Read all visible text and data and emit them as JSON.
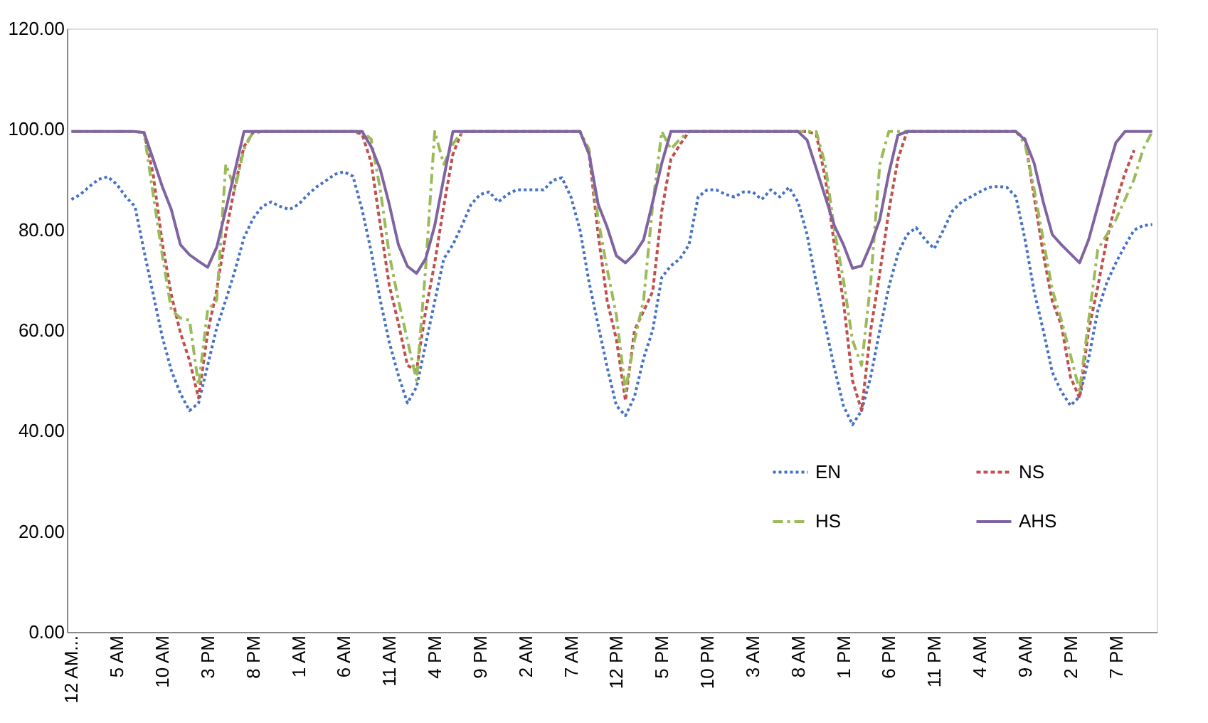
{
  "chart_data": {
    "type": "line",
    "categories": [
      "12 AM...",
      null,
      null,
      null,
      null,
      "5 AM",
      null,
      null,
      null,
      null,
      "10 AM",
      null,
      null,
      null,
      null,
      "3 PM",
      null,
      null,
      null,
      null,
      "8 PM",
      null,
      null,
      null,
      null,
      "1 AM",
      null,
      null,
      null,
      null,
      "6 AM",
      null,
      null,
      null,
      null,
      "11 AM",
      null,
      null,
      null,
      null,
      "4 PM",
      null,
      null,
      null,
      null,
      "9 PM",
      null,
      null,
      null,
      null,
      "2 AM",
      null,
      null,
      null,
      null,
      "7 AM",
      null,
      null,
      null,
      null,
      "12 PM",
      null,
      null,
      null,
      null,
      "5 PM",
      null,
      null,
      null,
      null,
      "10 PM",
      null,
      null,
      null,
      null,
      "3 AM",
      null,
      null,
      null,
      null,
      "8 AM",
      null,
      null,
      null,
      null,
      "1 PM",
      null,
      null,
      null,
      null,
      "6 PM",
      null,
      null,
      null,
      null,
      "11 PM",
      null,
      null,
      null,
      null,
      "4 AM",
      null,
      null,
      null,
      null,
      "9 AM",
      null,
      null,
      null,
      null,
      "2 PM",
      null,
      null,
      null,
      null,
      "7 PM",
      null,
      null,
      null,
      null
    ],
    "series": [
      {
        "name": "EN",
        "color": "#4472c4",
        "line_style": "dotted",
        "values": [
          86,
          87,
          88.6,
          90,
          90.5,
          89,
          86.5,
          84.6,
          75.7,
          67.2,
          58.7,
          52,
          47.4,
          44,
          45.5,
          53,
          60.5,
          66,
          71.8,
          78.4,
          82.2,
          84.6,
          85.5,
          84.6,
          84,
          85,
          86.9,
          88.5,
          89.7,
          91,
          91.5,
          90.6,
          84,
          75.7,
          66,
          57.6,
          51,
          45.5,
          48.7,
          57.2,
          65.7,
          74.2,
          77,
          80.8,
          85,
          87,
          87.5,
          85.5,
          87,
          87.9,
          87.9,
          87.9,
          87.9,
          89.8,
          90.3,
          86.5,
          79.9,
          69.5,
          61,
          52.5,
          45,
          43,
          46.8,
          54.4,
          60,
          70.5,
          72.8,
          74.2,
          77,
          86.5,
          87.9,
          87.9,
          87,
          86.5,
          87.5,
          87.5,
          86,
          87.9,
          86.5,
          88.4,
          85.5,
          79,
          69.5,
          61,
          52.5,
          45,
          41.2,
          44,
          50.7,
          60,
          68.6,
          75.2,
          79,
          80.4,
          78,
          76.2,
          79.9,
          83.7,
          85.5,
          86.5,
          87.5,
          88.4,
          88.6,
          88.4,
          86.5,
          78,
          67.7,
          60,
          51.6,
          47.8,
          45,
          46.8,
          54.4,
          63.8,
          69.5,
          73.4,
          76.8,
          79.9,
          80.8,
          81
        ]
      },
      {
        "name": "NS",
        "color": "#c0504d",
        "line_style": "dashed",
        "values": [
          null,
          null,
          null,
          null,
          null,
          null,
          null,
          null,
          99.3,
          91,
          77.4,
          67,
          59.5,
          54,
          46.5,
          59.5,
          68,
          79.3,
          88.6,
          96.5,
          99.3,
          99.5,
          99.5,
          99.5,
          99.5,
          99.5,
          99.5,
          99.5,
          99.5,
          99.5,
          99.5,
          99.5,
          99,
          93.4,
          81,
          68.9,
          61.4,
          53,
          52,
          63.8,
          73.4,
          84.7,
          95,
          99.5,
          99.5,
          99.5,
          99.5,
          99.5,
          99.5,
          99.5,
          99.5,
          99.5,
          99.5,
          99.5,
          99.5,
          99.5,
          99.5,
          95,
          79,
          65.7,
          58.2,
          46,
          60,
          63.8,
          67.7,
          83.7,
          94,
          96.9,
          99.5,
          99.5,
          99.5,
          99.5,
          99.5,
          99.5,
          99.5,
          99.5,
          99.5,
          99.5,
          99.5,
          99.5,
          99.5,
          99.5,
          99,
          90.3,
          77,
          65.7,
          50,
          44,
          60,
          71.3,
          83.7,
          94,
          99.5,
          99.5,
          99.5,
          99.5,
          99.5,
          99.5,
          99.5,
          99.5,
          99.5,
          99.5,
          99.5,
          99.5,
          99.5,
          98,
          86.5,
          75.2,
          65.7,
          61,
          50.7,
          46.5,
          60,
          68.6,
          78,
          85.5,
          91.2,
          95.8,
          null,
          null
        ]
      },
      {
        "name": "HS",
        "color": "#9bbb59",
        "line_style": "dashdot",
        "values": [
          99.5,
          99.5,
          99.5,
          99.5,
          99.5,
          99.5,
          99.5,
          99.5,
          99.3,
          87,
          75,
          64,
          62.4,
          62,
          49,
          64,
          66,
          93,
          88,
          96,
          99.5,
          99.5,
          99.5,
          99.5,
          99.5,
          99.5,
          99.5,
          99.5,
          99.5,
          99.5,
          99.5,
          99.5,
          99.5,
          98,
          88,
          75,
          66,
          58,
          50,
          72.3,
          99.5,
          93,
          97,
          99.5,
          99.5,
          99.5,
          99.5,
          99.5,
          99.5,
          99.5,
          99.5,
          99.5,
          99.5,
          99.5,
          99.5,
          99.5,
          99.5,
          96,
          82,
          72,
          63,
          48,
          58,
          66,
          85,
          99.5,
          96,
          98,
          99.5,
          99.5,
          99.5,
          99.5,
          99.5,
          99.5,
          99.5,
          99.5,
          99.5,
          99.5,
          99.5,
          99.5,
          99.5,
          99.5,
          99.5,
          93,
          80,
          70,
          58,
          53,
          69.5,
          93,
          99.5,
          99.5,
          99.5,
          99.5,
          99.5,
          99.5,
          99.5,
          99.5,
          99.5,
          99.5,
          99.5,
          99.5,
          99.5,
          99.5,
          99.5,
          97,
          88,
          78,
          68,
          62,
          55,
          48,
          62,
          76,
          79,
          82,
          86,
          90,
          96,
          99.5
        ]
      },
      {
        "name": "AHS",
        "color": "#8064a2",
        "line_style": "solid",
        "values": [
          99.5,
          99.5,
          99.5,
          99.5,
          99.5,
          99.5,
          99.5,
          99.5,
          99.3,
          94,
          88.6,
          84,
          77,
          75,
          73.7,
          72.5,
          76.5,
          84,
          91.7,
          99.5,
          99.5,
          99.5,
          99.5,
          99.5,
          99.5,
          99.5,
          99.5,
          99.5,
          99.5,
          99.5,
          99.5,
          99.5,
          99.5,
          96.5,
          92,
          85,
          77,
          72.7,
          71.3,
          74.2,
          80.8,
          90.3,
          99.5,
          99.5,
          99.5,
          99.5,
          99.5,
          99.5,
          99.5,
          99.5,
          99.5,
          99.5,
          99.5,
          99.5,
          99.5,
          99.5,
          99.5,
          95,
          85,
          80.4,
          74.8,
          73.4,
          75.2,
          78,
          85.5,
          93.2,
          99.5,
          99.5,
          99.5,
          99.5,
          99.5,
          99.5,
          99.5,
          99.5,
          99.5,
          99.5,
          99.5,
          99.5,
          99.5,
          99.5,
          99.5,
          97.8,
          92.2,
          86.5,
          80.8,
          77,
          72.3,
          72.8,
          77,
          82,
          91.2,
          98.8,
          99.5,
          99.5,
          99.5,
          99.5,
          99.5,
          99.5,
          99.5,
          99.5,
          99.5,
          99.5,
          99.5,
          99.5,
          99.5,
          97.8,
          93.2,
          85.5,
          79,
          77,
          75.2,
          73.4,
          78,
          84.6,
          91.2,
          97.3,
          99.5,
          99.5,
          99.5,
          99.5
        ]
      }
    ],
    "ylim": [
      0,
      120
    ],
    "yticks": [
      {
        "value": 0,
        "label": "0.00"
      },
      {
        "value": 20,
        "label": "20.00"
      },
      {
        "value": 40,
        "label": "40.00"
      },
      {
        "value": 60,
        "label": "60.00"
      },
      {
        "value": 80,
        "label": "80.00"
      },
      {
        "value": 100,
        "label": "100.00"
      },
      {
        "value": 120,
        "label": "120.00"
      }
    ],
    "grid": false,
    "legend": "bottom right",
    "marker": "none"
  }
}
